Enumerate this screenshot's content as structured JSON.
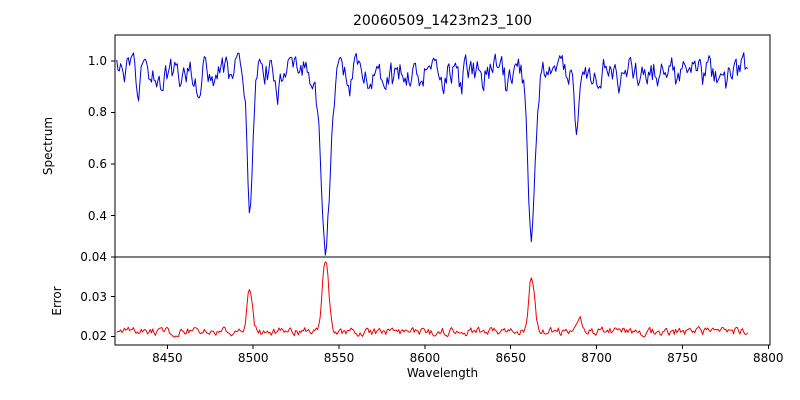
{
  "figure": {
    "title": "20060509_1423m23_100",
    "background_color": "#ffffff",
    "axis_color": "#000000"
  },
  "chart_data": {
    "type": "line",
    "title": "20060509_1423m23_100",
    "xlabel": "Wavelength",
    "xlim": [
      8419.5,
      8801
    ],
    "x_ticks": [
      {
        "v": 8450,
        "label": "8450"
      },
      {
        "v": 8500,
        "label": "8500"
      },
      {
        "v": 8550,
        "label": "8550"
      },
      {
        "v": 8600,
        "label": "8600"
      },
      {
        "v": 8650,
        "label": "8650"
      },
      {
        "v": 8700,
        "label": "8700"
      },
      {
        "v": 8750,
        "label": "8750"
      },
      {
        "v": 8800,
        "label": "8800"
      }
    ],
    "grid": false,
    "legend": "none",
    "panels": [
      {
        "name": "spectrum",
        "ylabel": "Spectrum",
        "ylim": [
          0.24,
          1.1
        ],
        "y_ticks": [
          {
            "v": 0.4,
            "label": "0.4"
          },
          {
            "v": 0.6,
            "label": "0.6"
          },
          {
            "v": 0.8,
            "label": "0.8"
          },
          {
            "v": 1.0,
            "label": "1.0"
          }
        ],
        "color": "#0000dd",
        "series": {
          "kind": "absorption",
          "x_start": 8420.5,
          "x_end": 8788,
          "x_step": 0.75,
          "continuum": 0.96,
          "noise_amp": 0.045,
          "noise_corr": 0.5,
          "seed": 12345,
          "clip_max": 1.06,
          "lines": [
            {
              "center": 8498.0,
              "depth": 0.5,
              "sigma": 1.6
            },
            {
              "center": 8542.1,
              "depth": 0.7,
              "sigma": 2.6
            },
            {
              "center": 8662.1,
              "depth": 0.62,
              "sigma": 2.0
            },
            {
              "center": 8688.0,
              "depth": 0.24,
              "sigma": 1.2
            },
            {
              "center": 8433.0,
              "depth": 0.1,
              "sigma": 1.0
            },
            {
              "center": 8446.0,
              "depth": 0.07,
              "sigma": 0.9
            },
            {
              "center": 8457.0,
              "depth": 0.05,
              "sigma": 0.8
            },
            {
              "center": 8468.0,
              "depth": 0.12,
              "sigma": 1.0
            },
            {
              "center": 8478.0,
              "depth": 0.06,
              "sigma": 0.8
            },
            {
              "center": 8488.0,
              "depth": 0.05,
              "sigma": 0.7
            },
            {
              "center": 8514.0,
              "depth": 0.08,
              "sigma": 0.9
            },
            {
              "center": 8527.0,
              "depth": 0.05,
              "sigma": 0.8
            },
            {
              "center": 8556.0,
              "depth": 0.05,
              "sigma": 0.8
            },
            {
              "center": 8568.0,
              "depth": 0.04,
              "sigma": 0.8
            },
            {
              "center": 8582.0,
              "depth": 0.05,
              "sigma": 0.8
            },
            {
              "center": 8598.0,
              "depth": 0.06,
              "sigma": 0.9
            },
            {
              "center": 8611.0,
              "depth": 0.04,
              "sigma": 0.8
            },
            {
              "center": 8621.0,
              "depth": 0.08,
              "sigma": 0.9
            },
            {
              "center": 8634.0,
              "depth": 0.05,
              "sigma": 0.8
            },
            {
              "center": 8648.0,
              "depth": 0.09,
              "sigma": 0.9
            },
            {
              "center": 8674.0,
              "depth": 0.05,
              "sigma": 0.8
            },
            {
              "center": 8702.0,
              "depth": 0.05,
              "sigma": 0.8
            },
            {
              "center": 8713.0,
              "depth": 0.04,
              "sigma": 0.8
            },
            {
              "center": 8724.0,
              "depth": 0.04,
              "sigma": 0.8
            },
            {
              "center": 8736.0,
              "depth": 0.05,
              "sigma": 0.8
            },
            {
              "center": 8747.0,
              "depth": 0.04,
              "sigma": 0.8
            },
            {
              "center": 8762.0,
              "depth": 0.06,
              "sigma": 0.9
            },
            {
              "center": 8775.0,
              "depth": 0.04,
              "sigma": 0.8
            }
          ]
        }
      },
      {
        "name": "error",
        "ylabel": "Error",
        "ylim": [
          0.0178,
          0.04
        ],
        "y_ticks": [
          {
            "v": 0.02,
            "label": "0.02"
          },
          {
            "v": 0.03,
            "label": "0.03"
          },
          {
            "v": 0.04,
            "label": "0.04"
          }
        ],
        "color": "#ee0000",
        "series": {
          "kind": "emission",
          "x_start": 8420.5,
          "x_end": 8788,
          "x_step": 0.75,
          "continuum": 0.0212,
          "noise_amp": 0.0009,
          "noise_corr": 0.45,
          "seed": 98765,
          "lines": [
            {
              "center": 8498.0,
              "height": 0.0112,
              "sigma": 1.5
            },
            {
              "center": 8542.1,
              "height": 0.018,
              "sigma": 1.9
            },
            {
              "center": 8662.1,
              "height": 0.0137,
              "sigma": 1.7
            },
            {
              "center": 8690.0,
              "height": 0.0035,
              "sigma": 1.1
            }
          ]
        }
      }
    ]
  }
}
